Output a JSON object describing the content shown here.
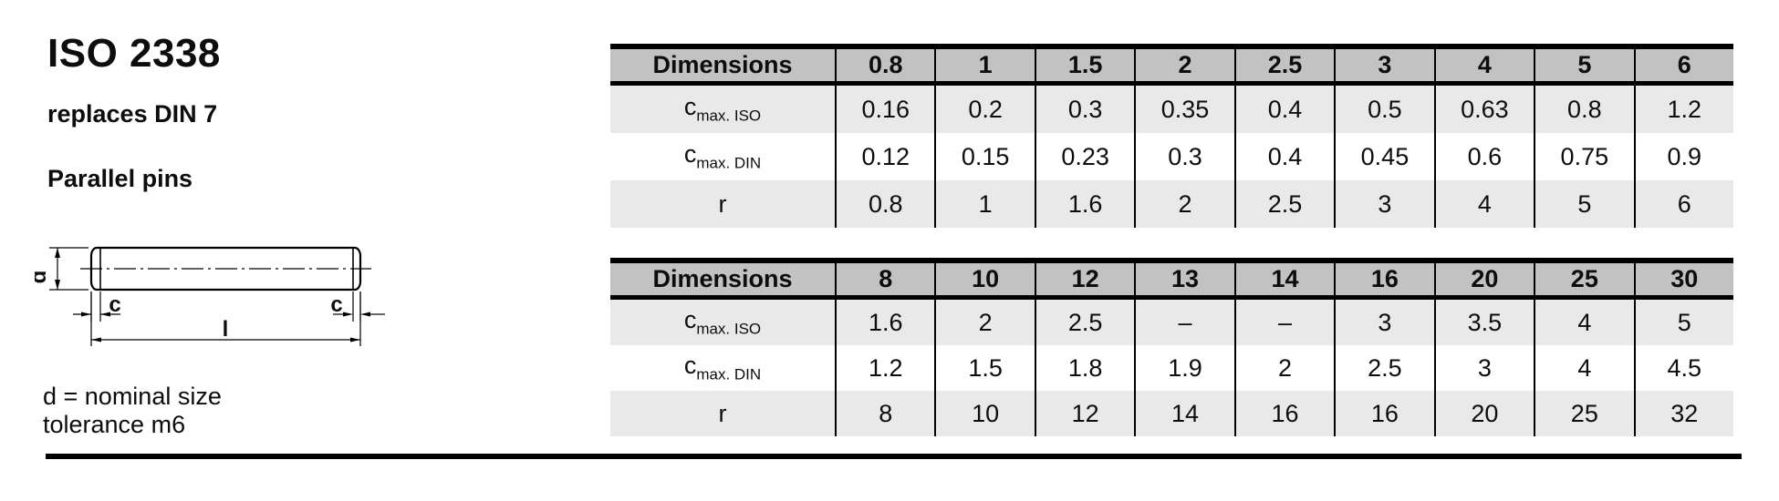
{
  "page": {
    "title": "ISO 2338",
    "subtitle": "replaces DIN 7",
    "product": "Parallel pins",
    "note_line1": "d = nominal size",
    "note_line2": "tolerance m6"
  },
  "drawing": {
    "d_label": "d",
    "c_label_left": "c",
    "c_label_right": "c",
    "l_label": "l"
  },
  "tables": [
    {
      "header": [
        "Dimensions",
        "0.8",
        "1",
        "1.5",
        "2",
        "2.5",
        "3",
        "4",
        "5",
        "6"
      ],
      "rows": [
        {
          "label_base": "c",
          "label_sub": "max. ISO",
          "values": [
            "0.16",
            "0.2",
            "0.3",
            "0.35",
            "0.4",
            "0.5",
            "0.63",
            "0.8",
            "1.2"
          ]
        },
        {
          "label_base": "c",
          "label_sub": "max. DIN",
          "values": [
            "0.12",
            "0.15",
            "0.23",
            "0.3",
            "0.4",
            "0.45",
            "0.6",
            "0.75",
            "0.9"
          ]
        },
        {
          "label_base": "r",
          "label_sub": "",
          "values": [
            "0.8",
            "1",
            "1.6",
            "2",
            "2.5",
            "3",
            "4",
            "5",
            "6"
          ]
        }
      ]
    },
    {
      "header": [
        "Dimensions",
        "8",
        "10",
        "12",
        "13",
        "14",
        "16",
        "20",
        "25",
        "30"
      ],
      "rows": [
        {
          "label_base": "c",
          "label_sub": "max. ISO",
          "values": [
            "1.6",
            "2",
            "2.5",
            "–",
            "–",
            "3",
            "3.5",
            "4",
            "5"
          ]
        },
        {
          "label_base": "c",
          "label_sub": "max. DIN",
          "values": [
            "1.2",
            "1.5",
            "1.8",
            "1.9",
            "2",
            "2.5",
            "3",
            "4",
            "4.5"
          ]
        },
        {
          "label_base": "r",
          "label_sub": "",
          "values": [
            "8",
            "10",
            "12",
            "14",
            "16",
            "16",
            "20",
            "25",
            "32"
          ]
        }
      ]
    }
  ],
  "colors": {
    "header_bg": "#c2c2c2",
    "stripe_bg": "#e9e9e9",
    "border": "#000000"
  }
}
